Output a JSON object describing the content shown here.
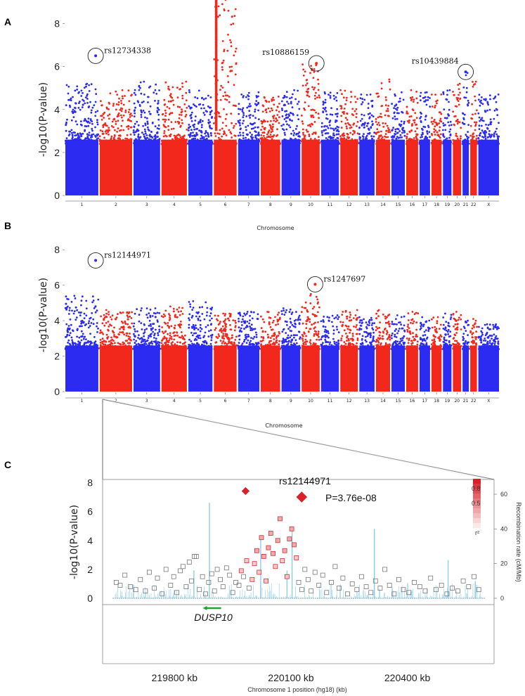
{
  "figure": {
    "panel_labels": [
      "A",
      "B",
      "C"
    ]
  },
  "colors": {
    "blue": "#2b2bf2",
    "red": "#f2281c",
    "light_blue_bar": "#8fcbe6",
    "gene_green": "#2a9d3a",
    "square_grey": "#777777",
    "square_red": "#c8323c"
  },
  "chart_data": [
    {
      "panel": "A",
      "type": "scatter",
      "subtype": "manhattan",
      "ylabel": "-log10(P-value)",
      "xlabel": "Chromosome",
      "ylim": [
        0,
        9
      ],
      "yticks": [
        0,
        2,
        4,
        6,
        8
      ],
      "chromosomes": [
        "1",
        "2",
        "3",
        "4",
        "5",
        "6",
        "7",
        "8",
        "9",
        "10",
        "11",
        "12",
        "13",
        "14",
        "15",
        "16",
        "17",
        "18",
        "19",
        "20",
        "21",
        "22",
        "X"
      ],
      "chromosome_lengths_mb": [
        247,
        243,
        199,
        191,
        181,
        171,
        159,
        146,
        140,
        135,
        134,
        132,
        114,
        106,
        100,
        89,
        79,
        76,
        64,
        62,
        47,
        50,
        155
      ],
      "chromosome_colors": [
        "blue",
        "red",
        "blue",
        "red",
        "blue",
        "red",
        "blue",
        "red",
        "blue",
        "red",
        "blue",
        "red",
        "blue",
        "red",
        "blue",
        "red",
        "blue",
        "red",
        "blue",
        "red",
        "blue",
        "red",
        "blue"
      ],
      "chromosome_peak_neglog10p": [
        5.2,
        4.9,
        5.3,
        5.3,
        4.9,
        9.5,
        4.8,
        4.6,
        4.9,
        6.1,
        4.8,
        4.9,
        4.7,
        5.4,
        4.8,
        4.9,
        4.8,
        4.7,
        4.9,
        5.2,
        5.7,
        5.3,
        4.7
      ],
      "highlighted_snps": [
        {
          "name": "rs12734338",
          "chromosome": "1",
          "position_fraction": 0.92,
          "neglog10p": 6.5,
          "color": "blue",
          "label_side": "right"
        },
        {
          "name": "rs10886159",
          "chromosome": "10",
          "position_fraction": 0.82,
          "neglog10p": 6.15,
          "color": "red",
          "label_side": "left"
        },
        {
          "name": "rs10439884",
          "chromosome": "21",
          "position_fraction": 0.5,
          "neglog10p": 5.75,
          "color": "blue",
          "label_side": "left"
        }
      ]
    },
    {
      "panel": "B",
      "type": "scatter",
      "subtype": "manhattan",
      "ylabel": "-log10(P-value)",
      "xlabel": "Chromosome",
      "ylim": [
        0,
        9
      ],
      "yticks": [
        0,
        2,
        4,
        6,
        8
      ],
      "chromosomes": [
        "1",
        "2",
        "3",
        "4",
        "5",
        "6",
        "7",
        "8",
        "9",
        "10",
        "11",
        "12",
        "13",
        "14",
        "15",
        "16",
        "17",
        "18",
        "19",
        "20",
        "21",
        "22",
        "X"
      ],
      "chromosome_lengths_mb": [
        247,
        243,
        199,
        191,
        181,
        171,
        159,
        146,
        140,
        135,
        134,
        132,
        114,
        106,
        100,
        89,
        79,
        76,
        64,
        62,
        47,
        50,
        155
      ],
      "chromosome_colors": [
        "blue",
        "red",
        "blue",
        "red",
        "blue",
        "red",
        "blue",
        "red",
        "blue",
        "red",
        "blue",
        "red",
        "blue",
        "red",
        "blue",
        "red",
        "blue",
        "red",
        "blue",
        "red",
        "blue",
        "red",
        "blue"
      ],
      "chromosome_peak_neglog10p": [
        5.4,
        4.6,
        4.7,
        4.8,
        5.1,
        4.4,
        4.5,
        4.5,
        4.7,
        5.5,
        4.3,
        4.6,
        4.2,
        4.6,
        4.3,
        4.5,
        4.2,
        4.2,
        4.4,
        4.5,
        4.0,
        4.1,
        3.8
      ],
      "highlighted_snps": [
        {
          "name": "rs12144971",
          "chromosome": "1",
          "position_fraction": 0.92,
          "neglog10p": 7.4,
          "color": "blue",
          "label_side": "right"
        },
        {
          "name": "rs1247697",
          "chromosome": "10",
          "position_fraction": 0.75,
          "neglog10p": 6.05,
          "color": "red",
          "label_side": "right"
        }
      ]
    },
    {
      "panel": "C",
      "type": "scatter",
      "subtype": "regional_association",
      "ylabel": "-log10(P-value)",
      "xlabel": "Chromosome 1 position (hg18) (kb)",
      "ylabel_right": "Recombination rate (cM/Mb)",
      "ylim": [
        0,
        9
      ],
      "yticks": [
        0,
        2,
        4,
        6,
        8
      ],
      "xlim_kb": [
        219640,
        220600
      ],
      "xticks_kb": [
        219800,
        220100,
        220400
      ],
      "xtick_labels": [
        "219800 kb",
        "220100 kb",
        "220400 kb"
      ],
      "y2lim": [
        0,
        75
      ],
      "y2ticks": [
        0,
        20,
        40,
        60
      ],
      "lead_snp": {
        "name": "rs12144971",
        "position_kb": 219983,
        "neglog10p": 7.42,
        "label": "P=3.76e-08"
      },
      "r2_legend": {
        "title": "r²",
        "ticks": [
          0.8,
          0.5
        ]
      },
      "gene": {
        "name": "DUSP10",
        "start_kb": 219880,
        "end_kb": 219920,
        "strand": "-"
      },
      "recombination_peaks": [
        {
          "position_kb": 219890,
          "rate": 55
        },
        {
          "position_kb": 220022,
          "rate": 35
        },
        {
          "position_kb": 220103,
          "rate": 40
        },
        {
          "position_kb": 220315,
          "rate": 40
        },
        {
          "position_kb": 220090,
          "rate": 16
        },
        {
          "position_kb": 219850,
          "rate": 16
        },
        {
          "position_kb": 220505,
          "rate": 22
        },
        {
          "position_kb": 220575,
          "rate": 10
        }
      ],
      "snp_points": [
        [
          219650,
          1.1,
          0
        ],
        [
          219660,
          0.9,
          0
        ],
        [
          219672,
          1.6,
          0
        ],
        [
          219686,
          0.8,
          0
        ],
        [
          219700,
          0.6,
          0
        ],
        [
          219712,
          1.3,
          0
        ],
        [
          219725,
          0.5,
          0
        ],
        [
          219735,
          1.8,
          0
        ],
        [
          219748,
          0.7,
          0
        ],
        [
          219756,
          1.4,
          0
        ],
        [
          219768,
          0.3,
          0
        ],
        [
          219778,
          2.0,
          0
        ],
        [
          219790,
          0.9,
          0
        ],
        [
          219798,
          1.5,
          0
        ],
        [
          219806,
          0.4,
          0
        ],
        [
          219815,
          1.9,
          0
        ],
        [
          219822,
          2.2,
          0
        ],
        [
          219830,
          0.8,
          0
        ],
        [
          219838,
          2.5,
          0
        ],
        [
          219844,
          1.2,
          0
        ],
        [
          219851,
          2.9,
          0
        ],
        [
          219856,
          2.9,
          0
        ],
        [
          219864,
          0.6,
          0
        ],
        [
          219872,
          1.5,
          0
        ],
        [
          219880,
          0.3,
          0
        ],
        [
          219888,
          1.1,
          0
        ],
        [
          219896,
          1.7,
          0
        ],
        [
          219903,
          0.5,
          0
        ],
        [
          219910,
          2.0,
          0
        ],
        [
          219918,
          1.3,
          0
        ],
        [
          219925,
          0.8,
          0
        ],
        [
          219934,
          2.1,
          0
        ],
        [
          219942,
          1.6,
          0
        ],
        [
          219950,
          0.4,
          0
        ],
        [
          219958,
          1.1,
          0
        ],
        [
          219966,
          0.9,
          0
        ],
        [
          219972,
          1.9,
          0.6
        ],
        [
          219978,
          1.5,
          0
        ],
        [
          219986,
          2.6,
          0.7
        ],
        [
          219992,
          0.7,
          0
        ],
        [
          220000,
          1.3,
          0.7
        ],
        [
          220006,
          2.4,
          0.7
        ],
        [
          220012,
          3.3,
          0.8
        ],
        [
          220018,
          1.8,
          0.7
        ],
        [
          220024,
          4.2,
          0.8
        ],
        [
          220030,
          2.9,
          0.8
        ],
        [
          220036,
          1.2,
          0.7
        ],
        [
          220042,
          3.5,
          0.8
        ],
        [
          220048,
          4.5,
          0.8
        ],
        [
          220054,
          3.1,
          0.8
        ],
        [
          220060,
          2.2,
          0.7
        ],
        [
          220066,
          4.0,
          0.8
        ],
        [
          220072,
          5.5,
          0.8
        ],
        [
          220078,
          2.6,
          0.7
        ],
        [
          220084,
          3.3,
          0.8
        ],
        [
          220090,
          1.5,
          0.7
        ],
        [
          220096,
          4.1,
          0.8
        ],
        [
          220102,
          4.8,
          0.8
        ],
        [
          220108,
          3.7,
          0.8
        ],
        [
          220114,
          2.8,
          0.7
        ],
        [
          220120,
          1.1,
          0
        ],
        [
          220128,
          0.6,
          0
        ],
        [
          220136,
          2.0,
          0
        ],
        [
          220144,
          1.3,
          0
        ],
        [
          220152,
          0.5,
          0
        ],
        [
          220162,
          1.8,
          0
        ],
        [
          220172,
          0.9,
          0
        ],
        [
          220182,
          1.6,
          0
        ],
        [
          220192,
          0.4,
          0
        ],
        [
          220204,
          1.1,
          0
        ],
        [
          220214,
          2.2,
          0
        ],
        [
          220224,
          0.7,
          0
        ],
        [
          220234,
          1.4,
          0
        ],
        [
          220246,
          0.3,
          0
        ],
        [
          220258,
          1.0,
          0
        ],
        [
          220270,
          0.6,
          0
        ],
        [
          220282,
          1.5,
          0
        ],
        [
          220294,
          0.8,
          0
        ],
        [
          220306,
          0.4,
          0
        ],
        [
          220318,
          1.2,
          0
        ],
        [
          220330,
          0.7,
          0
        ],
        [
          220342,
          2.0,
          0
        ],
        [
          220354,
          0.9,
          0
        ],
        [
          220366,
          0.3,
          0
        ],
        [
          220378,
          1.3,
          0
        ],
        [
          220390,
          0.6,
          0
        ],
        [
          220404,
          0.4,
          0
        ],
        [
          220418,
          1.1,
          0
        ],
        [
          220432,
          0.8,
          0
        ],
        [
          220446,
          0.5,
          0
        ],
        [
          220460,
          1.4,
          0
        ],
        [
          220474,
          0.6,
          0
        ],
        [
          220488,
          0.9,
          0
        ],
        [
          220502,
          0.3,
          0
        ],
        [
          220516,
          0.7,
          0
        ],
        [
          220530,
          0.5,
          0
        ],
        [
          220544,
          1.2,
          0
        ],
        [
          220558,
          0.8,
          0
        ],
        [
          220572,
          1.5,
          0
        ],
        [
          220584,
          0.6,
          0
        ]
      ]
    }
  ]
}
